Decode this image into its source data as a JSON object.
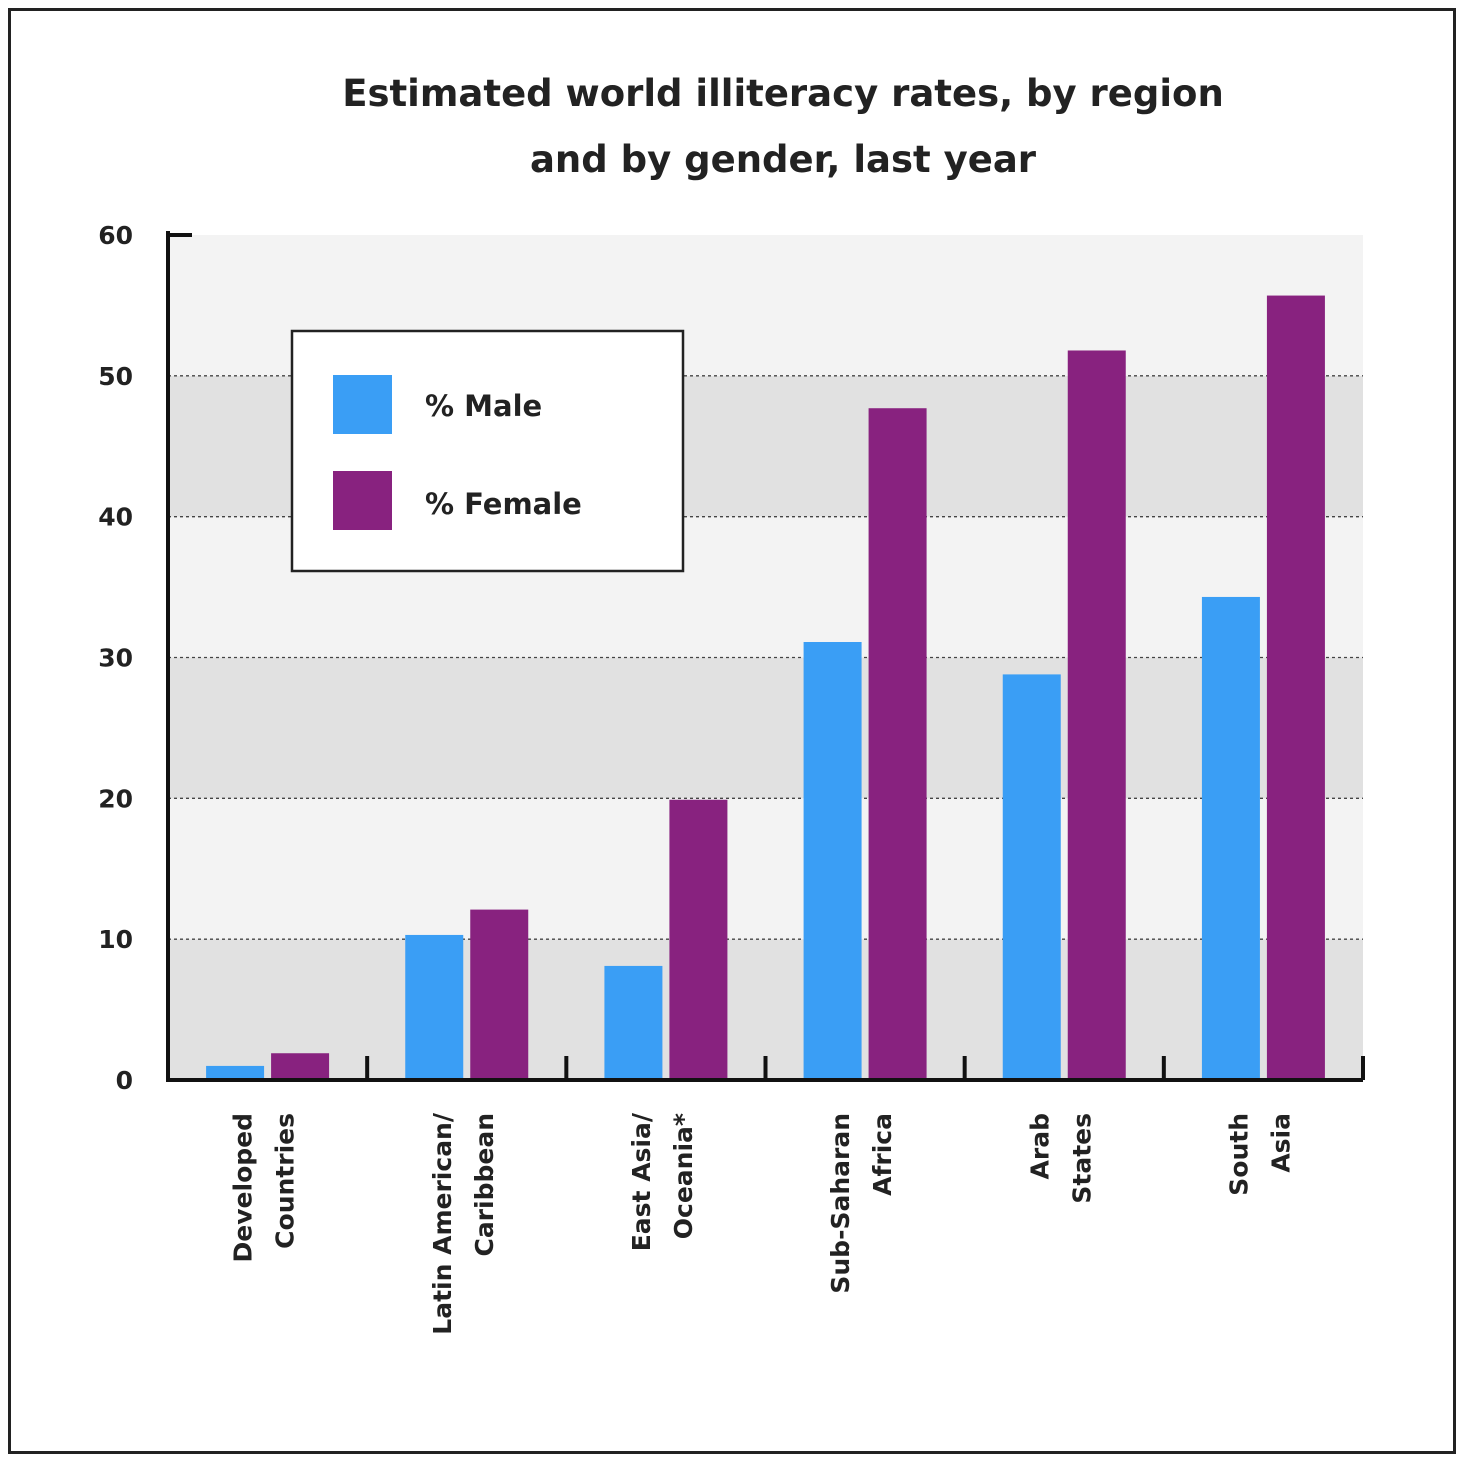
{
  "chart_data": {
    "type": "bar",
    "title_lines": [
      "Estimated world illiteracy rates, by region",
      "and by gender, last year"
    ],
    "categories": [
      [
        "Developed",
        "Countries"
      ],
      [
        "Latin American/",
        "Caribbean"
      ],
      [
        "East Asia/",
        "Oceania*"
      ],
      [
        "Sub-Saharan",
        "Africa"
      ],
      [
        "Arab",
        "States"
      ],
      [
        "South",
        "Asia"
      ]
    ],
    "series": [
      {
        "name": "% Male",
        "color": "#3a9ef5",
        "values": [
          1,
          10.3,
          8.1,
          31.1,
          28.8,
          34.3
        ]
      },
      {
        "name": "% Female",
        "color": "#88227f",
        "values": [
          1.9,
          12.1,
          19.9,
          47.7,
          51.8,
          55.7
        ]
      }
    ],
    "ylim": [
      0,
      60
    ],
    "yticks": [
      0,
      10,
      20,
      30,
      40,
      50,
      60
    ],
    "grid": "dotted horizontal",
    "bands": [
      "#e1e1e1",
      "#f3f3f3"
    ],
    "legend_position": "top-left"
  }
}
